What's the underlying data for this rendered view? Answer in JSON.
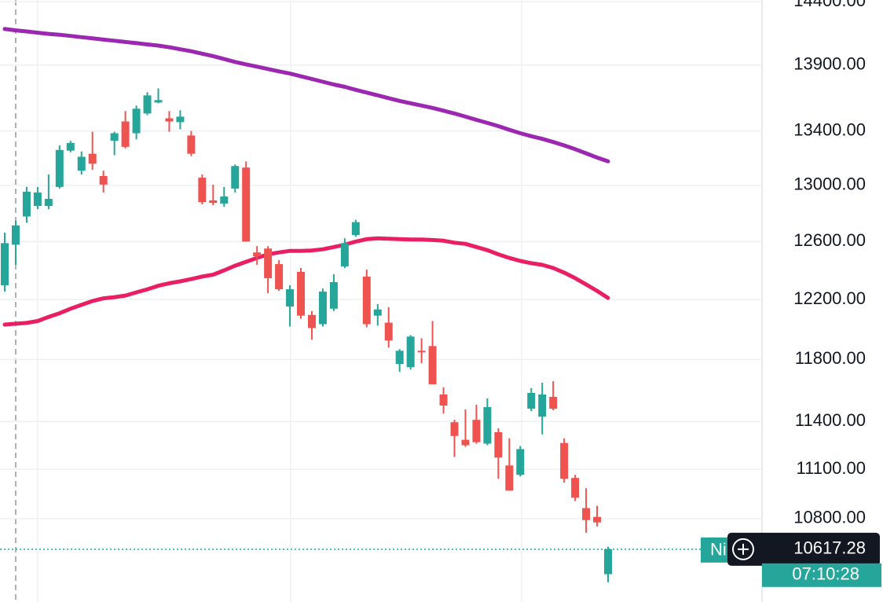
{
  "chart_data": {
    "type": "candlestick",
    "log_scale": true,
    "grid": true,
    "up_color": "#26a69a",
    "down_color": "#ef5350",
    "ylim": [
      10310,
      14413
    ],
    "yticks": [
      {
        "value": 14400,
        "label": "14400.00"
      },
      {
        "value": 13900,
        "label": "13900.00"
      },
      {
        "value": 13400,
        "label": "13400.00"
      },
      {
        "value": 13000,
        "label": "13000.00"
      },
      {
        "value": 12600,
        "label": "12600.00"
      },
      {
        "value": 12200,
        "label": "12200.00"
      },
      {
        "value": 11800,
        "label": "11800.00"
      },
      {
        "value": 11400,
        "label": "11400.00"
      },
      {
        "value": 11100,
        "label": "11100.00"
      },
      {
        "value": 10800,
        "label": "10800.00"
      }
    ],
    "open": [
      12297,
      12578,
      12777,
      12852,
      12852,
      12989,
      13254,
      13107,
      13231,
      13068,
      13327,
      13471,
      13383,
      13531,
      13614,
      13495,
      13466,
      13366,
      13056,
      12892,
      12869,
      12977,
      13130,
      12524,
      12551,
      12443,
      12153,
      12389,
      12096,
      12034,
      12138,
      12427,
      12646,
      12357,
      12091,
      12044,
      11770,
      11749,
      11857,
      11888,
      11572,
      11395,
      11284,
      11410,
      11260,
      11332,
      11124,
      11066,
      11481,
      11430,
      11557,
      11264,
      11047,
      10863,
      10810,
      10471
    ],
    "high": [
      12663,
      12749,
      12989,
      12989,
      13079,
      13293,
      13327,
      13248,
      13394,
      13107,
      13394,
      13549,
      13591,
      13692,
      13721,
      13549,
      13555,
      13400,
      13079,
      13006,
      12989,
      13152,
      13175,
      12568,
      12568,
      12470,
      12297,
      12416,
      12122,
      12275,
      12373,
      12623,
      12754,
      12405,
      12169,
      12148,
      11868,
      11961,
      11940,
      12055,
      11618,
      11410,
      11476,
      11506,
      11547,
      11356,
      11293,
      11245,
      11613,
      11648,
      11658,
      11293,
      11066,
      10984,
      10877,
      10632
    ],
    "low": [
      12254,
      12438,
      12732,
      12829,
      12829,
      12977,
      13242,
      13079,
      13113,
      12949,
      13220,
      13271,
      13338,
      13519,
      13608,
      13394,
      13412,
      13214,
      12863,
      12857,
      12846,
      12949,
      12600,
      12438,
      12243,
      12259,
      12018,
      12070,
      11930,
      12018,
      12122,
      12416,
      12634,
      12013,
      12024,
      11878,
      11719,
      11734,
      11775,
      11638,
      11450,
      11177,
      11240,
      11260,
      11250,
      11042,
      10969,
      11056,
      11466,
      11318,
      11471,
      11018,
      10906,
      10715,
      10753,
      10424
    ],
    "close": [
      12589,
      12714,
      12954,
      12949,
      12903,
      13259,
      13310,
      13209,
      13158,
      13006,
      13383,
      13282,
      13567,
      13668,
      13632,
      13471,
      13507,
      13231,
      12880,
      12874,
      12920,
      13141,
      12600,
      12497,
      12346,
      12270,
      12270,
      12091,
      12008,
      12254,
      12319,
      12589,
      12737,
      12034,
      12133,
      11925,
      11857,
      11951,
      11847,
      11638,
      11501,
      11308,
      11250,
      11269,
      11491,
      11173,
      10969,
      11226,
      11582,
      11572,
      11481,
      11042,
      10926,
      10791,
      10777,
      10617.28
    ],
    "series": [
      {
        "color": "#9c27b0",
        "values": [
          14182,
          14172,
          14163,
          14153,
          14144,
          14137,
          14128,
          14118,
          14109,
          14099,
          14090,
          14080,
          14071,
          14061,
          14052,
          14039,
          14023,
          14008,
          13989,
          13970,
          13947,
          13925,
          13906,
          13888,
          13870,
          13852,
          13835,
          13814,
          13793,
          13772,
          13751,
          13733,
          13710,
          13689,
          13668,
          13647,
          13626,
          13608,
          13591,
          13573,
          13552,
          13531,
          13507,
          13483,
          13460,
          13436,
          13409,
          13383,
          13361,
          13341,
          13318,
          13293,
          13265,
          13234,
          13203,
          13175
        ]
      },
      {
        "color": "#e91e63",
        "values": [
          12031,
          12037,
          12042,
          12055,
          12083,
          12107,
          12138,
          12164,
          12190,
          12208,
          12216,
          12227,
          12249,
          12270,
          12294,
          12311,
          12324,
          12340,
          12357,
          12370,
          12400,
          12432,
          12459,
          12486,
          12511,
          12524,
          12535,
          12535,
          12538,
          12546,
          12562,
          12578,
          12600,
          12617,
          12623,
          12620,
          12617,
          12614,
          12614,
          12611,
          12606,
          12592,
          12584,
          12562,
          12540,
          12511,
          12486,
          12465,
          12449,
          12438,
          12416,
          12384,
          12346,
          12303,
          12259,
          12211
        ]
      }
    ],
    "last_price": 10617.28,
    "countdown": "07:10:28",
    "tag": "Ni"
  }
}
